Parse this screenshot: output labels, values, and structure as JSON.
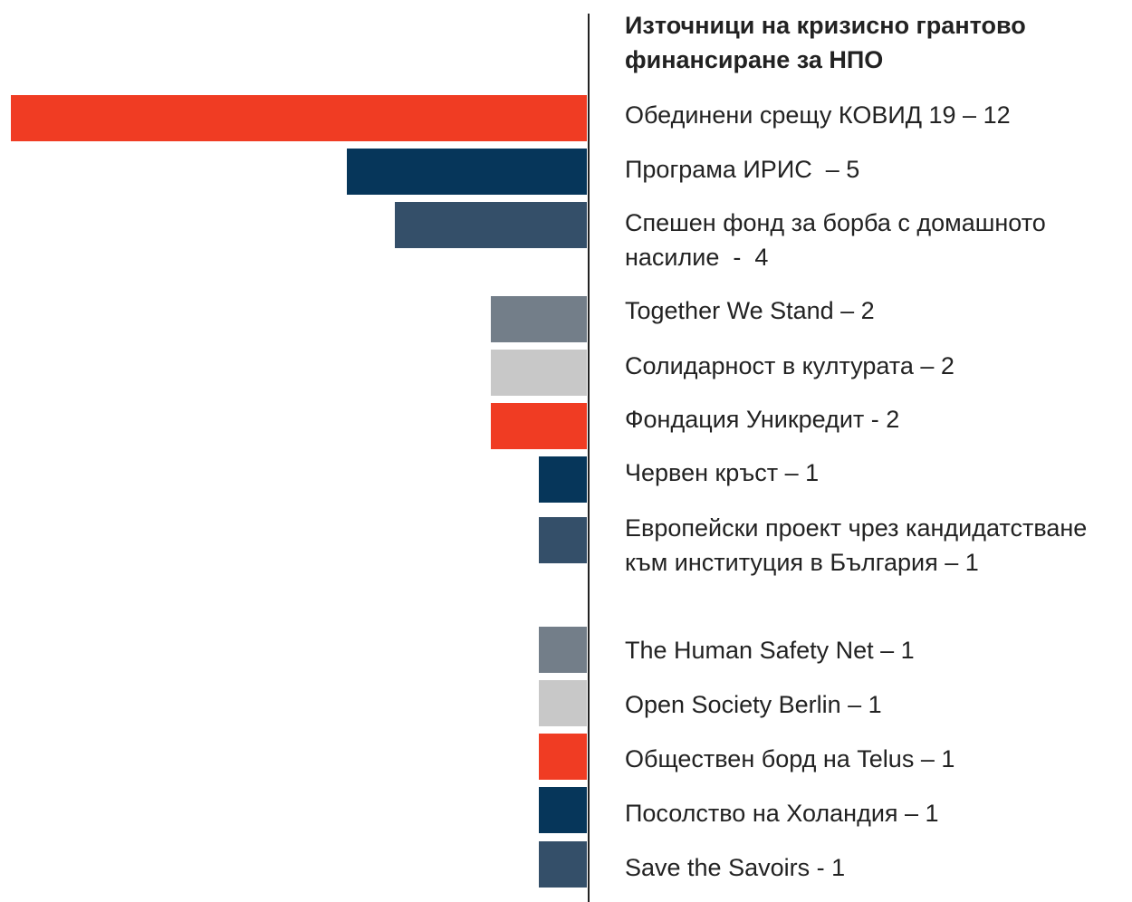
{
  "chart_data": {
    "type": "bar",
    "orientation": "horizontal",
    "title": "Източници на кризисно грантово финансиране за НПО",
    "categories": [
      "Обединени срещу КОВИД 19 – 12",
      "Програма ИРИС  – 5",
      "Спешен фонд за борба с домашното насилие  -  4",
      "Together We Stand – 2",
      "Солидарност в културата – 2",
      "Фондация Уникредит - 2",
      "Червен кръст – 1",
      "Европейски проект чрез кандидатстване към институция в България – 1",
      "The Human Safety Net – 1",
      "Open Society Berlin – 1",
      "Обществен борд на Telus – 1",
      "Посолство на Холандия – 1",
      "Save the Savoirs - 1"
    ],
    "values": [
      12,
      5,
      4,
      2,
      2,
      2,
      1,
      1,
      1,
      1,
      1,
      1,
      1
    ],
    "colors": [
      "#f03c23",
      "#06365a",
      "#344f69",
      "#737e89",
      "#c8c8c8",
      "#f03c23",
      "#06365a",
      "#344f69",
      "#737e89",
      "#c8c8c8",
      "#f03c23",
      "#06365a",
      "#344f69"
    ]
  }
}
